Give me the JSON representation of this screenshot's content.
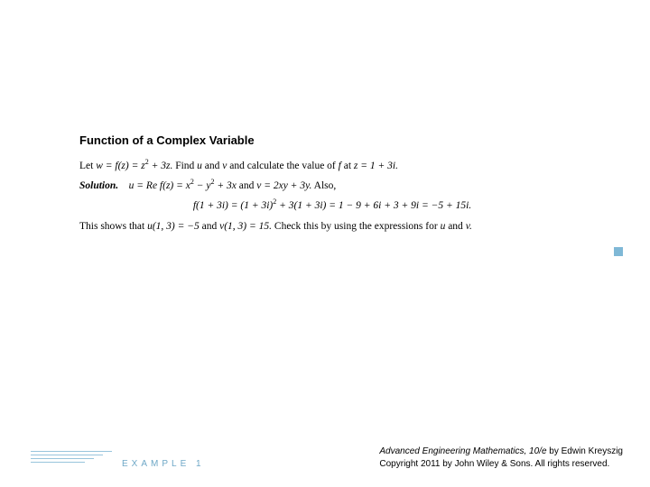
{
  "title": "Function of a Complex Variable",
  "line1_a": "Let ",
  "line1_b": "w = f(z) = z",
  "line1_c": " + 3z.",
  "line1_d": " Find ",
  "line1_e": "u",
  "line1_f": " and ",
  "line1_g": "v",
  "line1_h": " and calculate the value of ",
  "line1_i": "f",
  "line1_j": " at ",
  "line1_k": "z = 1 + 3i.",
  "solution_label": "Solution.",
  "sol_a": "u = Re f(z) = x",
  "sol_b": " − y",
  "sol_c": " + 3x",
  "sol_d": " and ",
  "sol_e": "v = 2xy + 3y.",
  "sol_f": " Also,",
  "eq_a": "f(1 + 3i) = (1 + 3i)",
  "eq_b": " + 3(1 + 3i) = 1 − 9 + 6i + 3 + 9i = −5 + 15i.",
  "closing_a": "This shows that ",
  "closing_b": "u(1, 3) = −5",
  "closing_c": " and ",
  "closing_d": "v(1, 3) = 15.",
  "closing_e": " Check this by using the expressions for ",
  "closing_f": "u",
  "closing_g": " and ",
  "closing_h": "v.",
  "sq": "2",
  "example_label": "EXAMPLE 1",
  "book_title": "Advanced Engineering Mathematics, 10/e",
  "author": " by Edwin Kreyszig",
  "copyright": "Copyright 2011 by John Wiley & Sons.  All rights reserved.",
  "decor_line_widths": [
    90,
    80,
    70,
    60
  ]
}
